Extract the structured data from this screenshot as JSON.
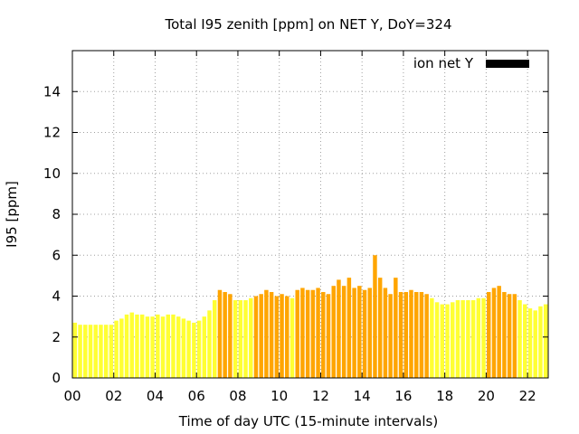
{
  "chart_data": {
    "type": "bar",
    "title": "Total I95 zenith [ppm] on NET Y, DoY=324",
    "xlabel": "Time of day UTC (15-minute intervals)",
    "ylabel": "I95 [ppm]",
    "ylim": [
      0,
      16
    ],
    "xlim": [
      0,
      23
    ],
    "yticks": [
      0,
      2,
      4,
      6,
      8,
      10,
      12,
      14
    ],
    "ytick_labels": [
      "0",
      "2",
      "4",
      "6",
      "8",
      "10",
      "12",
      "14"
    ],
    "xticks": [
      0,
      2,
      4,
      6,
      8,
      10,
      12,
      14,
      16,
      18,
      20,
      22
    ],
    "xtick_labels": [
      "00",
      "02",
      "04",
      "06",
      "08",
      "10",
      "12",
      "14",
      "16",
      "18",
      "20",
      "22"
    ],
    "grid": true,
    "legend": {
      "label": "ion net Y",
      "color": "#000000",
      "placement": "top-right"
    },
    "colors": {
      "low": "#ffff33",
      "high": "#ffa500"
    },
    "threshold": 4,
    "interval_hours": 0.25,
    "values": [
      2.7,
      2.6,
      2.6,
      2.6,
      2.6,
      2.6,
      2.6,
      2.6,
      2.8,
      2.9,
      3.1,
      3.2,
      3.1,
      3.1,
      3.0,
      3.0,
      3.1,
      3.0,
      3.1,
      3.1,
      3.0,
      2.9,
      2.8,
      2.7,
      2.8,
      3.0,
      3.3,
      3.8,
      4.3,
      4.2,
      4.1,
      3.8,
      3.8,
      3.8,
      3.9,
      4.0,
      4.1,
      4.3,
      4.2,
      4.0,
      4.1,
      4.0,
      3.9,
      4.3,
      4.4,
      4.3,
      4.3,
      4.4,
      4.2,
      4.1,
      4.5,
      4.8,
      4.5,
      4.9,
      4.4,
      4.5,
      4.3,
      4.4,
      6.0,
      4.9,
      4.4,
      4.1,
      4.9,
      4.2,
      4.2,
      4.3,
      4.2,
      4.2,
      4.1,
      3.9,
      3.7,
      3.6,
      3.6,
      3.7,
      3.8,
      3.8,
      3.8,
      3.8,
      3.9,
      3.9,
      4.2,
      4.4,
      4.5,
      4.2,
      4.1,
      4.1,
      3.8,
      3.6,
      3.4,
      3.3,
      3.5,
      3.6
    ]
  }
}
